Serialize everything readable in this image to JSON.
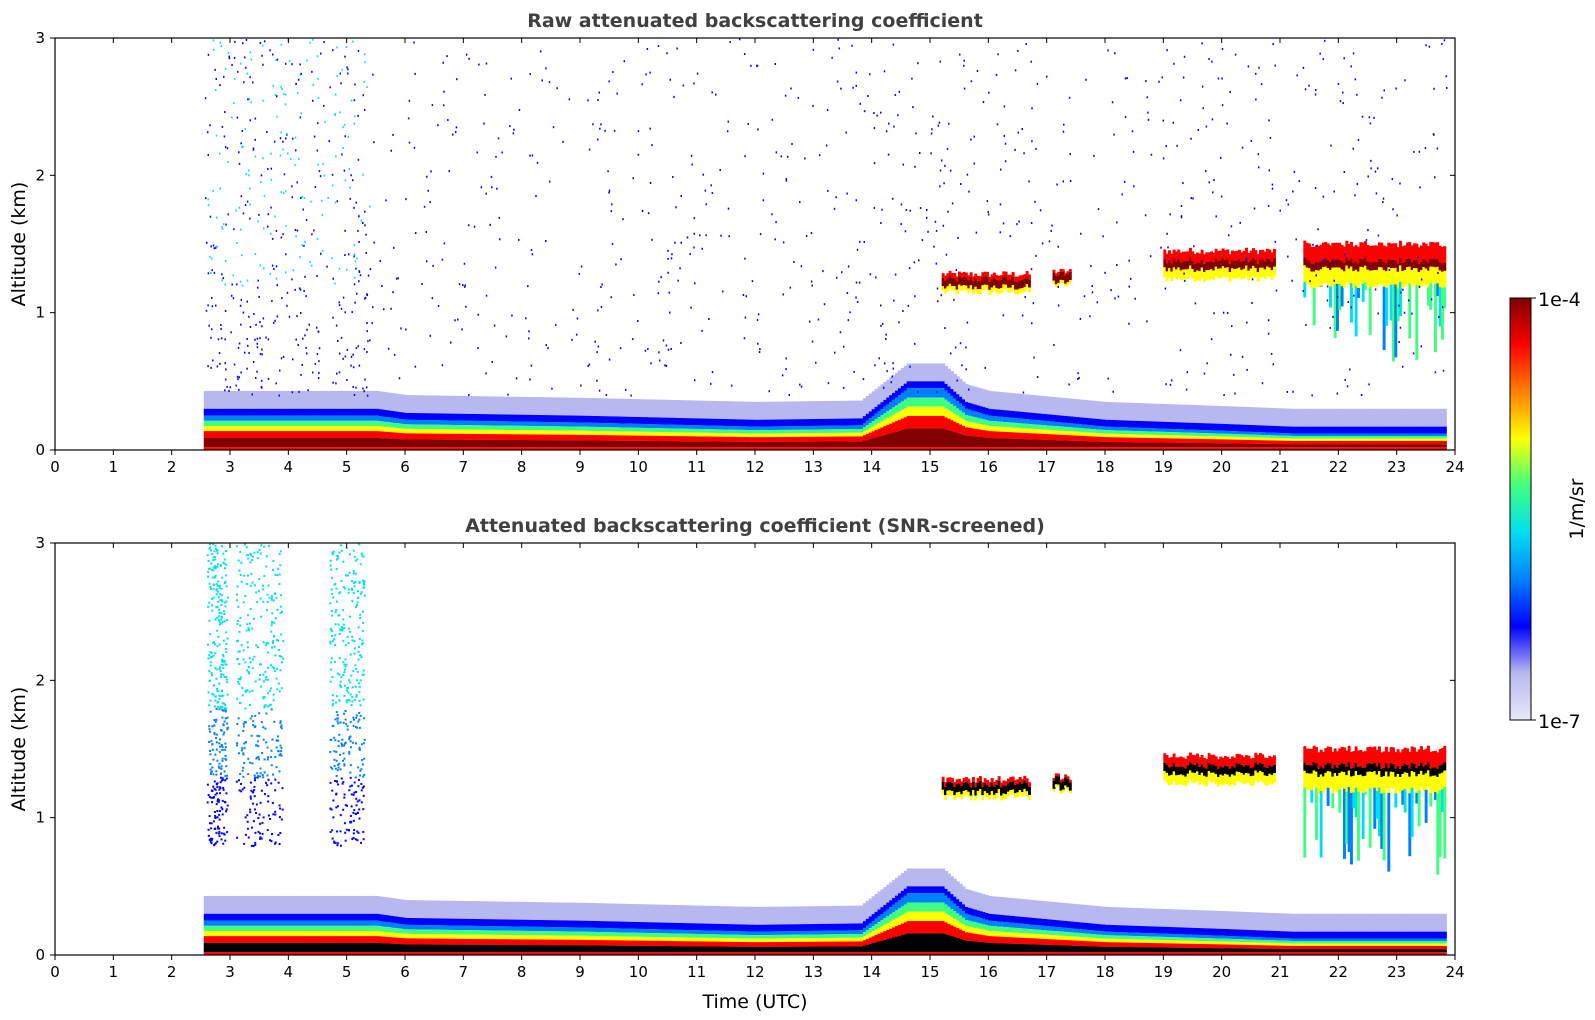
{
  "colors": {
    "colormap": [
      "#e8e8f8",
      "#b8b8f0",
      "#0000ff",
      "#0080ff",
      "#00e0f0",
      "#40ff80",
      "#ffff00",
      "#ff8000",
      "#ff0000",
      "#800000"
    ],
    "saturated": "#000000",
    "axis": "#000000",
    "title": "#404040"
  },
  "chart_data": [
    {
      "type": "heatmap",
      "title": "Raw attenuated backscattering coefficient",
      "xlabel": "",
      "ylabel": "Altitude (km)",
      "xlim": [
        0,
        24
      ],
      "ylim": [
        0,
        3
      ],
      "xticks": [
        "0",
        "1",
        "2",
        "3",
        "4",
        "5",
        "6",
        "7",
        "8",
        "9",
        "10",
        "11",
        "12",
        "13",
        "14",
        "15",
        "16",
        "17",
        "18",
        "19",
        "20",
        "21",
        "22",
        "23",
        "24"
      ],
      "yticks": [
        "0",
        "1",
        "2",
        "3"
      ],
      "data_start_utc": 2.55,
      "data_end_utc": 23.85,
      "features": {
        "boundary_layer": {
          "top_km": [
            [
              2.55,
              0.25
            ],
            [
              5.5,
              0.25
            ],
            [
              6,
              0.22
            ],
            [
              9,
              0.2
            ],
            [
              12,
              0.17
            ],
            [
              13.8,
              0.18
            ],
            [
              14.6,
              0.45
            ],
            [
              15.2,
              0.45
            ],
            [
              15.6,
              0.3
            ],
            [
              16,
              0.25
            ],
            [
              18,
              0.17
            ],
            [
              20,
              0.14
            ],
            [
              21.2,
              0.12
            ],
            [
              23.85,
              0.12
            ]
          ]
        },
        "cloud_layers": [
          {
            "x": [
              15.2,
              16.7
            ],
            "base_km": 1.15,
            "top_km": 1.28
          },
          {
            "x": [
              17.1,
              17.4
            ],
            "base_km": 1.2,
            "top_km": 1.3
          },
          {
            "x": [
              19.0,
              20.9
            ],
            "base_km": 1.25,
            "top_km": 1.45
          },
          {
            "x": [
              21.4,
              23.8
            ],
            "base_km": 1.2,
            "top_km": 1.5
          }
        ],
        "noise_region_km": [
          0.4,
          3
        ]
      }
    },
    {
      "type": "heatmap",
      "title": "Attenuated backscattering coefficient (SNR-screened)",
      "xlabel": "Time (UTC)",
      "ylabel": "Altitude (km)",
      "xlim": [
        0,
        24
      ],
      "ylim": [
        0,
        3
      ],
      "xticks": [
        "0",
        "1",
        "2",
        "3",
        "4",
        "5",
        "6",
        "7",
        "8",
        "9",
        "10",
        "11",
        "12",
        "13",
        "14",
        "15",
        "16",
        "17",
        "18",
        "19",
        "20",
        "21",
        "22",
        "23",
        "24"
      ],
      "yticks": [
        "0",
        "1",
        "2",
        "3"
      ],
      "data_start_utc": 2.55,
      "data_end_utc": 23.85,
      "features": {
        "screened_columns_utc": [
          [
            2.6,
            2.95
          ],
          [
            3.1,
            3.9
          ],
          [
            4.7,
            5.3
          ]
        ],
        "saturated_color": "black"
      }
    }
  ],
  "colorbar": {
    "max_label": "1e-4",
    "min_label": "1e-7",
    "unit_label": "1/m/sr",
    "scale": "log"
  }
}
